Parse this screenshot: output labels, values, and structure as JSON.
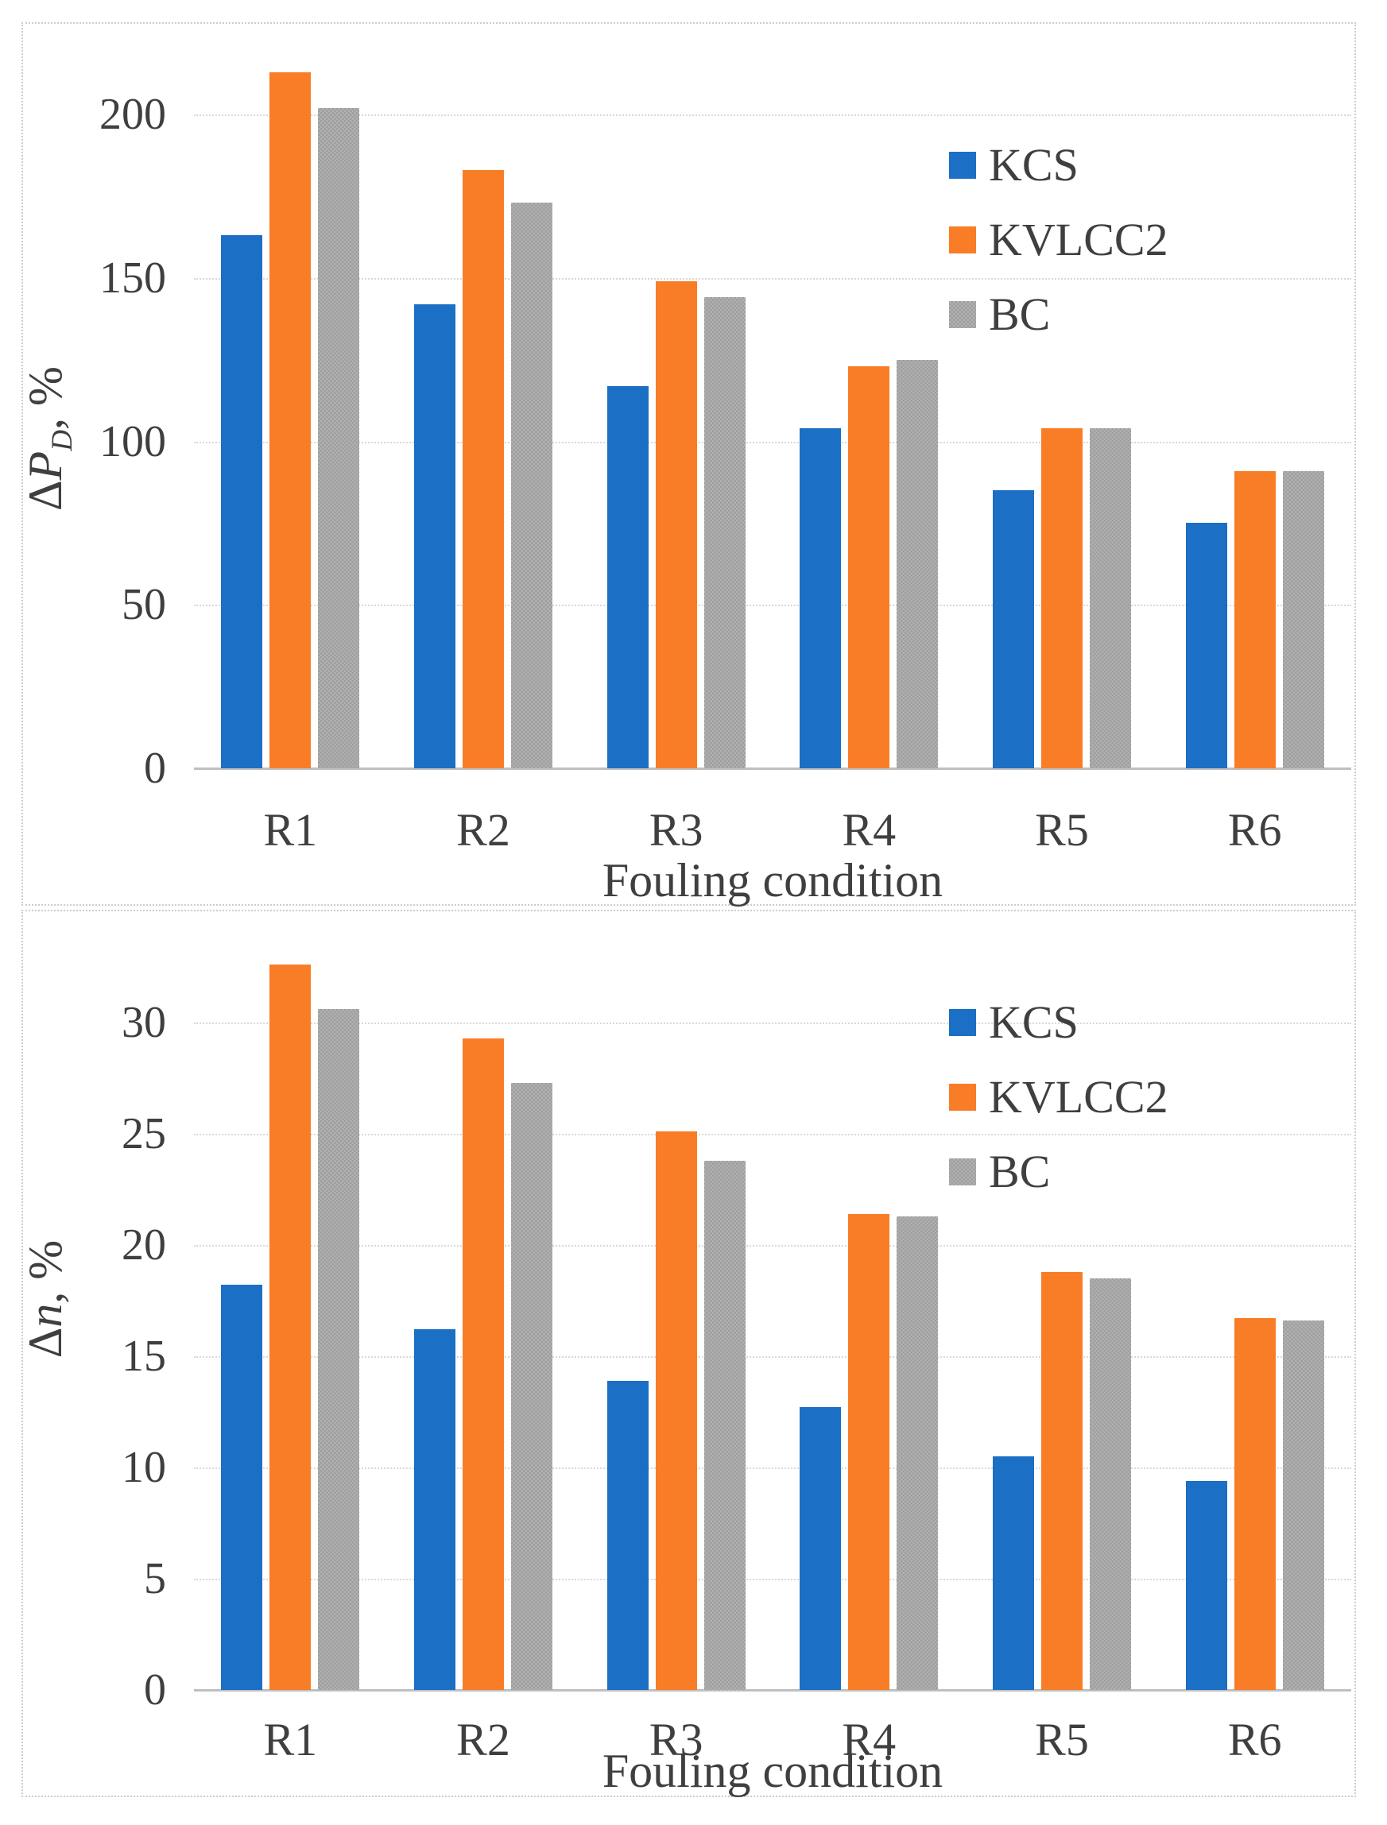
{
  "figure": {
    "description": "Two stacked grouped bar charts comparing fouling conditions for three ship hulls"
  },
  "colors": {
    "kcs": "#1b6fc4",
    "kvlcc2": "#f97d26",
    "bc_dark": "#9e9e9e",
    "bc_light": "#b1b1b1",
    "text": "#3f3f3f",
    "gridline": "#d9d9d9",
    "axis_line": "#bfbfbf",
    "panel_border": "#cdcdcd"
  },
  "chart_data": [
    {
      "type": "bar",
      "title": "",
      "ylabel": {
        "prefix": "Δ",
        "variable": "P",
        "subscript": "D",
        "suffix": ", %"
      },
      "xlabel": "Fouling condition",
      "ylim": [
        0,
        220
      ],
      "yticks": [
        0,
        50,
        100,
        150,
        200
      ],
      "grid": true,
      "legend_position": "upper-right",
      "categories": [
        "R1",
        "R2",
        "R3",
        "R4",
        "R5",
        "R6"
      ],
      "series": [
        {
          "name": "KCS",
          "color_key": "kcs",
          "values": [
            163,
            142,
            117,
            104,
            85,
            75
          ]
        },
        {
          "name": "KVLCC2",
          "color_key": "kvlcc2",
          "values": [
            213,
            183,
            149,
            123,
            104,
            91
          ]
        },
        {
          "name": "BC",
          "color_key": "bc",
          "values": [
            202,
            173,
            144,
            125,
            104,
            91
          ]
        }
      ]
    },
    {
      "type": "bar",
      "title": "",
      "ylabel": {
        "prefix": "Δ",
        "variable": "n",
        "subscript": "",
        "suffix": ", %"
      },
      "xlabel": "Fouling condition",
      "ylim": [
        0,
        33.5
      ],
      "yticks": [
        0,
        5,
        10,
        15,
        20,
        25,
        30
      ],
      "grid": true,
      "legend_position": "upper-right",
      "categories": [
        "R1",
        "R2",
        "R3",
        "R4",
        "R5",
        "R6"
      ],
      "series": [
        {
          "name": "KCS",
          "color_key": "kcs",
          "values": [
            18.2,
            16.2,
            13.9,
            12.7,
            10.5,
            9.4
          ]
        },
        {
          "name": "KVLCC2",
          "color_key": "kvlcc2",
          "values": [
            32.6,
            29.3,
            25.1,
            21.4,
            18.8,
            16.7
          ]
        },
        {
          "name": "BC",
          "color_key": "bc",
          "values": [
            30.6,
            27.3,
            23.8,
            21.3,
            18.5,
            16.6
          ]
        }
      ]
    }
  ]
}
